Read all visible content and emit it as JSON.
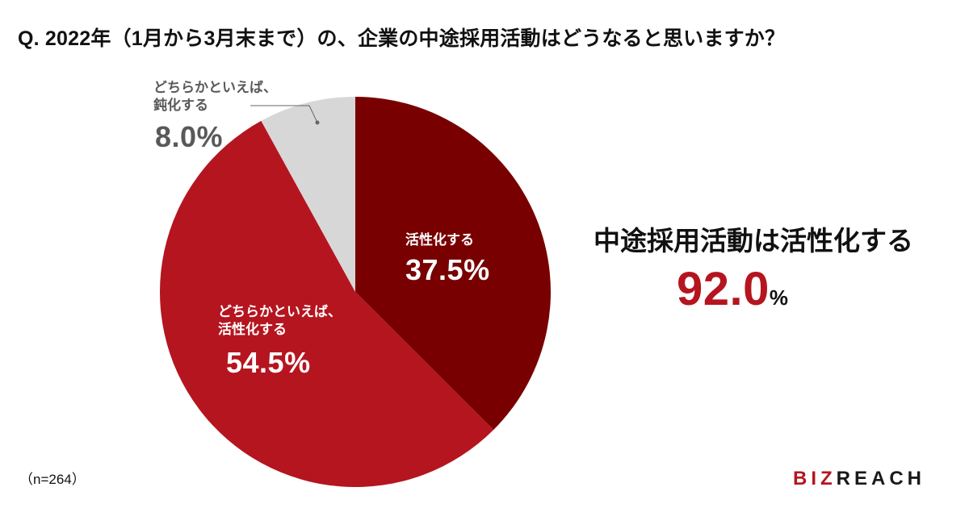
{
  "title": "Q. 2022年（1月から3月末まで）の、企業の中途採用活動はどうなると思いますか？",
  "chart_data": {
    "type": "pie",
    "title": "Q. 2022年（1月から3月末まで）の、企業の中途採用活動はどうなると思いますか？",
    "start_angle": "12 o'clock",
    "direction": "clockwise",
    "slices": [
      {
        "label": "活性化する",
        "value": 37.5,
        "display": "37.5%",
        "color": "#780000"
      },
      {
        "label": "どちらかといえば、活性化する",
        "value": 54.5,
        "display": "54.5%",
        "color": "#b5151f"
      },
      {
        "label": "どちらかといえば、鈍化する",
        "value": 8.0,
        "display": "8.0%",
        "color": "#d7d7d7"
      }
    ],
    "sample_size": "n=264"
  },
  "labels": {
    "active": {
      "line1": "活性化する",
      "value": "37.5%"
    },
    "somewhat_active": {
      "line1": "どちらかといえば、",
      "line2": "活性化する",
      "value": "54.5%"
    },
    "somewhat_slow": {
      "line1": "どちらかといえば、",
      "line2": "鈍化する",
      "value": "8.0%"
    }
  },
  "summary": {
    "title": "中途採用活動は活性化する",
    "value": "92.0",
    "unit": "%"
  },
  "footer": {
    "sample": "（n=264）",
    "logo_part1": "BIZ",
    "logo_part2": "REACH"
  },
  "colors": {
    "dark_red": "#780000",
    "red": "#b5151f",
    "gray": "#d7d7d7",
    "accent": "#b5151f"
  }
}
